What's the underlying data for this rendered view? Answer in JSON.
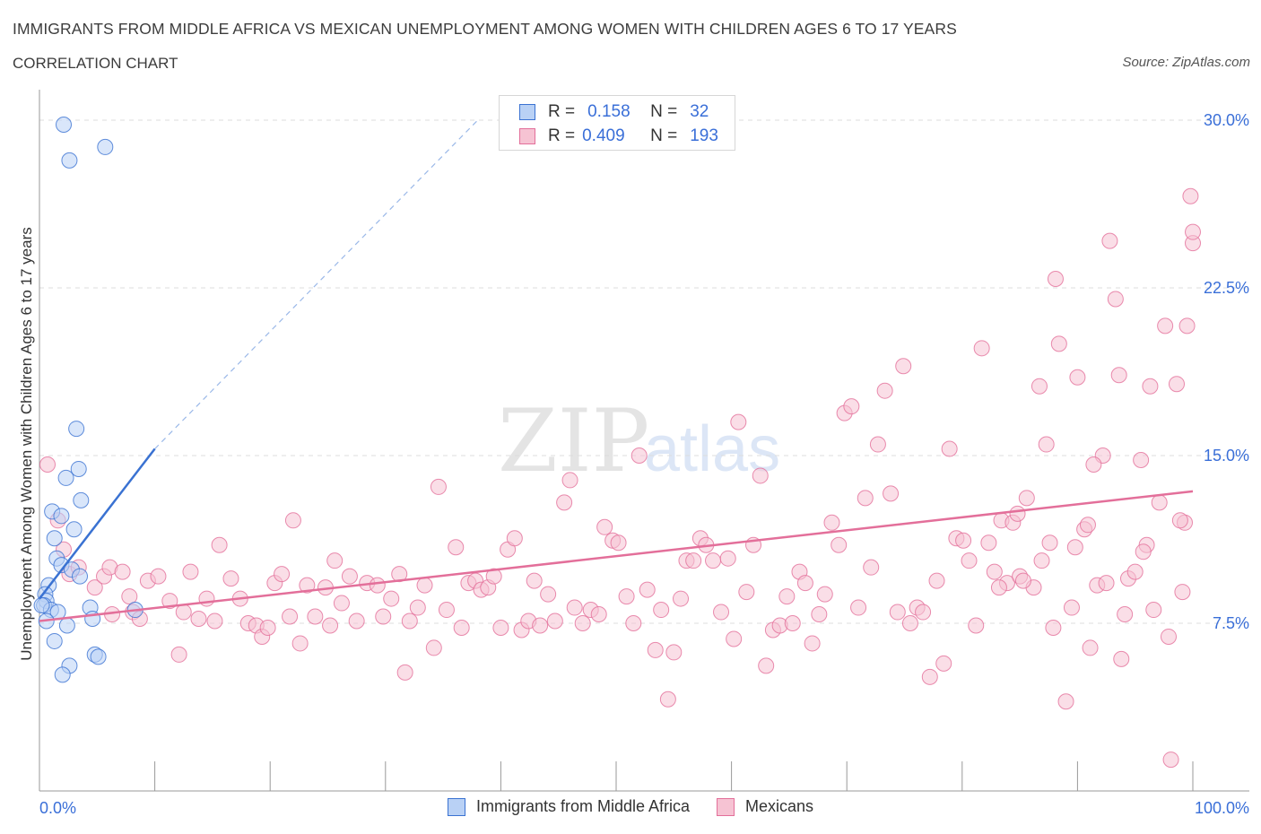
{
  "header": {
    "title": "IMMIGRANTS FROM MIDDLE AFRICA VS MEXICAN UNEMPLOYMENT AMONG WOMEN WITH CHILDREN AGES 6 TO 17 YEARS",
    "subtitle": "CORRELATION CHART",
    "source": "Source: ZipAtlas.com"
  },
  "colors": {
    "blue": "#3a72d2",
    "blue_fill": "#b9d1f5",
    "pink": "#e36f9a",
    "pink_fill": "#f6c3d3",
    "value_text": "#3a6fd8",
    "grid": "#dddddd"
  },
  "stats": [
    {
      "r_label": "R =",
      "r_value": "0.158",
      "n_label": "N =",
      "n_value": "32"
    },
    {
      "r_label": "R =",
      "r_value": "0.409",
      "n_label": "N =",
      "n_value": "193"
    }
  ],
  "watermark": {
    "zip": "ZIP",
    "atlas": "atlas"
  },
  "chart_data": {
    "type": "scatter",
    "title": "IMMIGRANTS FROM MIDDLE AFRICA VS MEXICAN UNEMPLOYMENT AMONG WOMEN WITH CHILDREN AGES 6 TO 17 YEARS",
    "subtitle": "CORRELATION CHART",
    "xlabel": "",
    "ylabel": "Unemployment Among Women with Children Ages 6 to 17 years",
    "xlim": [
      0,
      100
    ],
    "ylim": [
      0,
      30
    ],
    "x_tick_labels": [
      "0.0%",
      "100.0%"
    ],
    "y_ticks": [
      7.5,
      15.0,
      22.5,
      30.0
    ],
    "y_tick_labels": [
      "7.5%",
      "15.0%",
      "22.5%",
      "30.0%"
    ],
    "grid": "horizontal dashed",
    "legend_position": "bottom",
    "series": [
      {
        "name": "Immigrants from Middle Africa",
        "color": "#3a72d2",
        "trend": {
          "x": [
            0,
            10
          ],
          "y": [
            8.6,
            15.3
          ],
          "extended_to": [
            38,
            30.0
          ]
        },
        "points": [
          [
            2.1,
            29.8
          ],
          [
            2.6,
            28.2
          ],
          [
            5.7,
            28.8
          ],
          [
            3.2,
            16.2
          ],
          [
            3.4,
            14.4
          ],
          [
            2.3,
            14.0
          ],
          [
            3.6,
            13.0
          ],
          [
            1.1,
            12.5
          ],
          [
            1.9,
            12.3
          ],
          [
            3.0,
            11.7
          ],
          [
            1.3,
            11.3
          ],
          [
            1.5,
            10.4
          ],
          [
            1.9,
            10.1
          ],
          [
            2.8,
            9.9
          ],
          [
            3.5,
            9.6
          ],
          [
            0.8,
            9.2
          ],
          [
            0.5,
            8.8
          ],
          [
            0.6,
            8.5
          ],
          [
            0.4,
            8.3
          ],
          [
            1.0,
            8.1
          ],
          [
            0.2,
            8.3
          ],
          [
            1.6,
            8.0
          ],
          [
            4.4,
            8.2
          ],
          [
            8.3,
            8.1
          ],
          [
            4.6,
            7.7
          ],
          [
            0.6,
            7.6
          ],
          [
            2.4,
            7.4
          ],
          [
            1.3,
            6.7
          ],
          [
            4.8,
            6.1
          ],
          [
            2.6,
            5.6
          ],
          [
            2.0,
            5.2
          ],
          [
            5.1,
            6.0
          ]
        ]
      },
      {
        "name": "Mexicans",
        "color": "#e36f9a",
        "trend": {
          "x": [
            0,
            100
          ],
          "y": [
            7.6,
            13.4
          ]
        },
        "points": [
          [
            0.7,
            14.6
          ],
          [
            1.6,
            12.1
          ],
          [
            2.1,
            10.8
          ],
          [
            2.6,
            9.7
          ],
          [
            3.4,
            10.0
          ],
          [
            4.8,
            9.1
          ],
          [
            5.6,
            9.6
          ],
          [
            6.3,
            7.9
          ],
          [
            6.1,
            10.0
          ],
          [
            7.2,
            9.8
          ],
          [
            7.8,
            8.7
          ],
          [
            8.1,
            8.0
          ],
          [
            9.4,
            9.4
          ],
          [
            8.7,
            7.7
          ],
          [
            10.3,
            9.6
          ],
          [
            11.3,
            8.5
          ],
          [
            12.1,
            6.1
          ],
          [
            12.5,
            8.0
          ],
          [
            13.1,
            9.8
          ],
          [
            13.8,
            7.7
          ],
          [
            14.5,
            8.6
          ],
          [
            15.2,
            7.6
          ],
          [
            15.6,
            11.0
          ],
          [
            16.6,
            9.5
          ],
          [
            17.4,
            8.6
          ],
          [
            18.1,
            7.5
          ],
          [
            18.8,
            7.4
          ],
          [
            19.3,
            6.9
          ],
          [
            19.8,
            7.3
          ],
          [
            20.4,
            9.3
          ],
          [
            21.0,
            9.7
          ],
          [
            21.7,
            7.8
          ],
          [
            22.0,
            12.1
          ],
          [
            22.6,
            6.6
          ],
          [
            23.2,
            9.2
          ],
          [
            23.9,
            7.8
          ],
          [
            24.8,
            9.1
          ],
          [
            25.2,
            7.4
          ],
          [
            25.6,
            10.3
          ],
          [
            26.2,
            8.4
          ],
          [
            26.9,
            9.6
          ],
          [
            27.5,
            7.6
          ],
          [
            28.4,
            9.3
          ],
          [
            29.3,
            9.2
          ],
          [
            29.8,
            7.8
          ],
          [
            30.5,
            8.6
          ],
          [
            31.2,
            9.7
          ],
          [
            31.7,
            5.3
          ],
          [
            32.1,
            7.6
          ],
          [
            32.8,
            8.2
          ],
          [
            33.4,
            9.2
          ],
          [
            34.2,
            6.4
          ],
          [
            34.6,
            13.6
          ],
          [
            35.3,
            8.1
          ],
          [
            36.1,
            10.9
          ],
          [
            36.6,
            7.3
          ],
          [
            37.2,
            9.3
          ],
          [
            37.8,
            9.4
          ],
          [
            38.3,
            9.0
          ],
          [
            38.9,
            9.1
          ],
          [
            39.4,
            9.6
          ],
          [
            40.0,
            7.3
          ],
          [
            40.6,
            10.8
          ],
          [
            41.2,
            11.3
          ],
          [
            41.8,
            7.2
          ],
          [
            42.4,
            7.6
          ],
          [
            42.9,
            9.4
          ],
          [
            43.4,
            7.4
          ],
          [
            44.1,
            8.8
          ],
          [
            44.7,
            7.6
          ],
          [
            45.5,
            12.9
          ],
          [
            46.0,
            13.9
          ],
          [
            46.4,
            8.2
          ],
          [
            47.1,
            7.5
          ],
          [
            47.8,
            8.1
          ],
          [
            48.5,
            7.9
          ],
          [
            49.0,
            11.8
          ],
          [
            49.7,
            11.2
          ],
          [
            50.2,
            11.1
          ],
          [
            50.9,
            8.7
          ],
          [
            51.5,
            7.5
          ],
          [
            52.0,
            15.0
          ],
          [
            52.7,
            9.0
          ],
          [
            53.4,
            6.3
          ],
          [
            53.9,
            8.1
          ],
          [
            54.5,
            4.1
          ],
          [
            55.0,
            6.2
          ],
          [
            55.6,
            8.6
          ],
          [
            56.1,
            10.3
          ],
          [
            56.7,
            10.3
          ],
          [
            57.3,
            11.3
          ],
          [
            57.8,
            11.0
          ],
          [
            58.4,
            10.3
          ],
          [
            59.1,
            8.0
          ],
          [
            59.7,
            10.4
          ],
          [
            60.2,
            6.8
          ],
          [
            60.6,
            16.5
          ],
          [
            61.3,
            8.9
          ],
          [
            61.9,
            11.0
          ],
          [
            62.5,
            14.1
          ],
          [
            63.0,
            5.6
          ],
          [
            63.6,
            7.2
          ],
          [
            64.2,
            7.4
          ],
          [
            64.8,
            8.7
          ],
          [
            65.3,
            7.5
          ],
          [
            65.9,
            9.8
          ],
          [
            66.4,
            9.3
          ],
          [
            67.0,
            6.6
          ],
          [
            67.6,
            7.9
          ],
          [
            68.1,
            8.8
          ],
          [
            68.7,
            12.0
          ],
          [
            69.3,
            11.0
          ],
          [
            69.8,
            16.9
          ],
          [
            70.4,
            17.2
          ],
          [
            71.0,
            8.2
          ],
          [
            71.6,
            13.1
          ],
          [
            72.1,
            10.0
          ],
          [
            72.7,
            15.5
          ],
          [
            73.3,
            17.9
          ],
          [
            73.8,
            13.3
          ],
          [
            74.4,
            8.0
          ],
          [
            74.9,
            19.0
          ],
          [
            75.5,
            7.5
          ],
          [
            76.1,
            8.2
          ],
          [
            76.6,
            8.0
          ],
          [
            77.2,
            5.1
          ],
          [
            77.8,
            9.4
          ],
          [
            78.4,
            5.7
          ],
          [
            78.9,
            15.3
          ],
          [
            79.5,
            11.3
          ],
          [
            80.1,
            11.2
          ],
          [
            80.6,
            10.3
          ],
          [
            81.2,
            7.4
          ],
          [
            81.7,
            19.8
          ],
          [
            82.3,
            11.1
          ],
          [
            82.8,
            9.8
          ],
          [
            83.4,
            12.1
          ],
          [
            83.9,
            9.3
          ],
          [
            84.4,
            12.0
          ],
          [
            85.0,
            9.6
          ],
          [
            85.6,
            13.1
          ],
          [
            86.2,
            9.1
          ],
          [
            86.7,
            18.1
          ],
          [
            87.3,
            15.5
          ],
          [
            87.9,
            7.3
          ],
          [
            88.4,
            20.0
          ],
          [
            89.0,
            4.0
          ],
          [
            89.5,
            8.2
          ],
          [
            90.0,
            18.5
          ],
          [
            90.6,
            11.7
          ],
          [
            91.1,
            6.4
          ],
          [
            91.7,
            9.2
          ],
          [
            92.2,
            15.0
          ],
          [
            92.8,
            24.6
          ],
          [
            93.3,
            22.0
          ],
          [
            93.8,
            5.9
          ],
          [
            94.4,
            9.5
          ],
          [
            95.0,
            9.8
          ],
          [
            95.5,
            14.8
          ],
          [
            96.0,
            11.0
          ],
          [
            96.6,
            8.1
          ],
          [
            97.1,
            12.9
          ],
          [
            97.6,
            20.8
          ],
          [
            98.1,
            1.4
          ],
          [
            98.6,
            18.2
          ],
          [
            99.1,
            8.9
          ],
          [
            99.5,
            20.8
          ],
          [
            99.8,
            26.6
          ],
          [
            100.0,
            24.5
          ],
          [
            96.3,
            18.1
          ],
          [
            94.1,
            7.9
          ],
          [
            90.9,
            11.9
          ],
          [
            92.5,
            9.3
          ],
          [
            88.1,
            22.9
          ],
          [
            86.9,
            10.3
          ],
          [
            84.8,
            12.4
          ],
          [
            83.2,
            9.1
          ],
          [
            99.3,
            12.0
          ],
          [
            100.0,
            25.0
          ],
          [
            97.9,
            6.9
          ],
          [
            95.7,
            10.7
          ],
          [
            93.6,
            18.6
          ],
          [
            91.4,
            14.6
          ],
          [
            89.8,
            10.9
          ],
          [
            85.3,
            9.4
          ],
          [
            87.6,
            11.1
          ],
          [
            98.9,
            12.1
          ]
        ]
      }
    ]
  },
  "bottom_legend": [
    {
      "label": "Immigrants from Middle Africa"
    },
    {
      "label": "Mexicans"
    }
  ]
}
